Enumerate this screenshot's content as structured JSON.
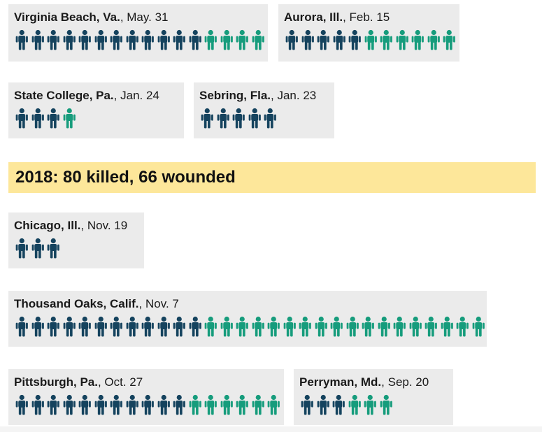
{
  "colors": {
    "killed": "#15435e",
    "wounded": "#169c7c",
    "card_bg": "#ebebeb",
    "banner_bg": "#fde79a"
  },
  "legend_icon": "person-icon",
  "incidents_top": [
    {
      "id": "virginia-beach",
      "place": "Virginia Beach, Va.",
      "date": ", May. 31",
      "killed": 12,
      "wounded": 4
    },
    {
      "id": "aurora",
      "place": "Aurora, Ill.",
      "date": ", Feb. 15",
      "killed": 5,
      "wounded": 6
    },
    {
      "id": "state-college",
      "place": "State College, Pa.",
      "date": ", Jan. 24",
      "killed": 3,
      "wounded": 1
    },
    {
      "id": "sebring",
      "place": "Sebring, Fla.",
      "date": ", Jan. 23",
      "killed": 5,
      "wounded": 0
    }
  ],
  "year_banner": {
    "text": "2018: 80 killed, 66 wounded"
  },
  "incidents_2018": [
    {
      "id": "chicago",
      "place": "Chicago, Ill.",
      "date": ", Nov. 19",
      "killed": 3,
      "wounded": 0
    },
    {
      "id": "thousand-oaks",
      "place": "Thousand Oaks, Calif.",
      "date": ", Nov. 7",
      "killed": 12,
      "wounded": 18
    },
    {
      "id": "pittsburgh",
      "place": "Pittsburgh, Pa.",
      "date": ", Oct. 27",
      "killed": 11,
      "wounded": 6
    },
    {
      "id": "perryman",
      "place": "Perryman, Md.",
      "date": ", Sep. 20",
      "killed": 3,
      "wounded": 3
    }
  ],
  "chart_data": {
    "type": "table",
    "categories": [
      "Virginia Beach, Va., May. 31",
      "Aurora, Ill., Feb. 15",
      "State College, Pa., Jan. 24",
      "Sebring, Fla., Jan. 23",
      "Chicago, Ill., Nov. 19",
      "Thousand Oaks, Calif., Nov. 7",
      "Pittsburgh, Pa., Oct. 27",
      "Perryman, Md., Sep. 20"
    ],
    "series": [
      {
        "values": [
          12,
          5,
          3,
          5,
          3,
          12,
          11,
          3
        ]
      },
      {
        "values": [
          4,
          6,
          1,
          0,
          0,
          18,
          6,
          3
        ]
      }
    ],
    "annotations": [
      "2018: 80 killed, 66 wounded"
    ]
  }
}
